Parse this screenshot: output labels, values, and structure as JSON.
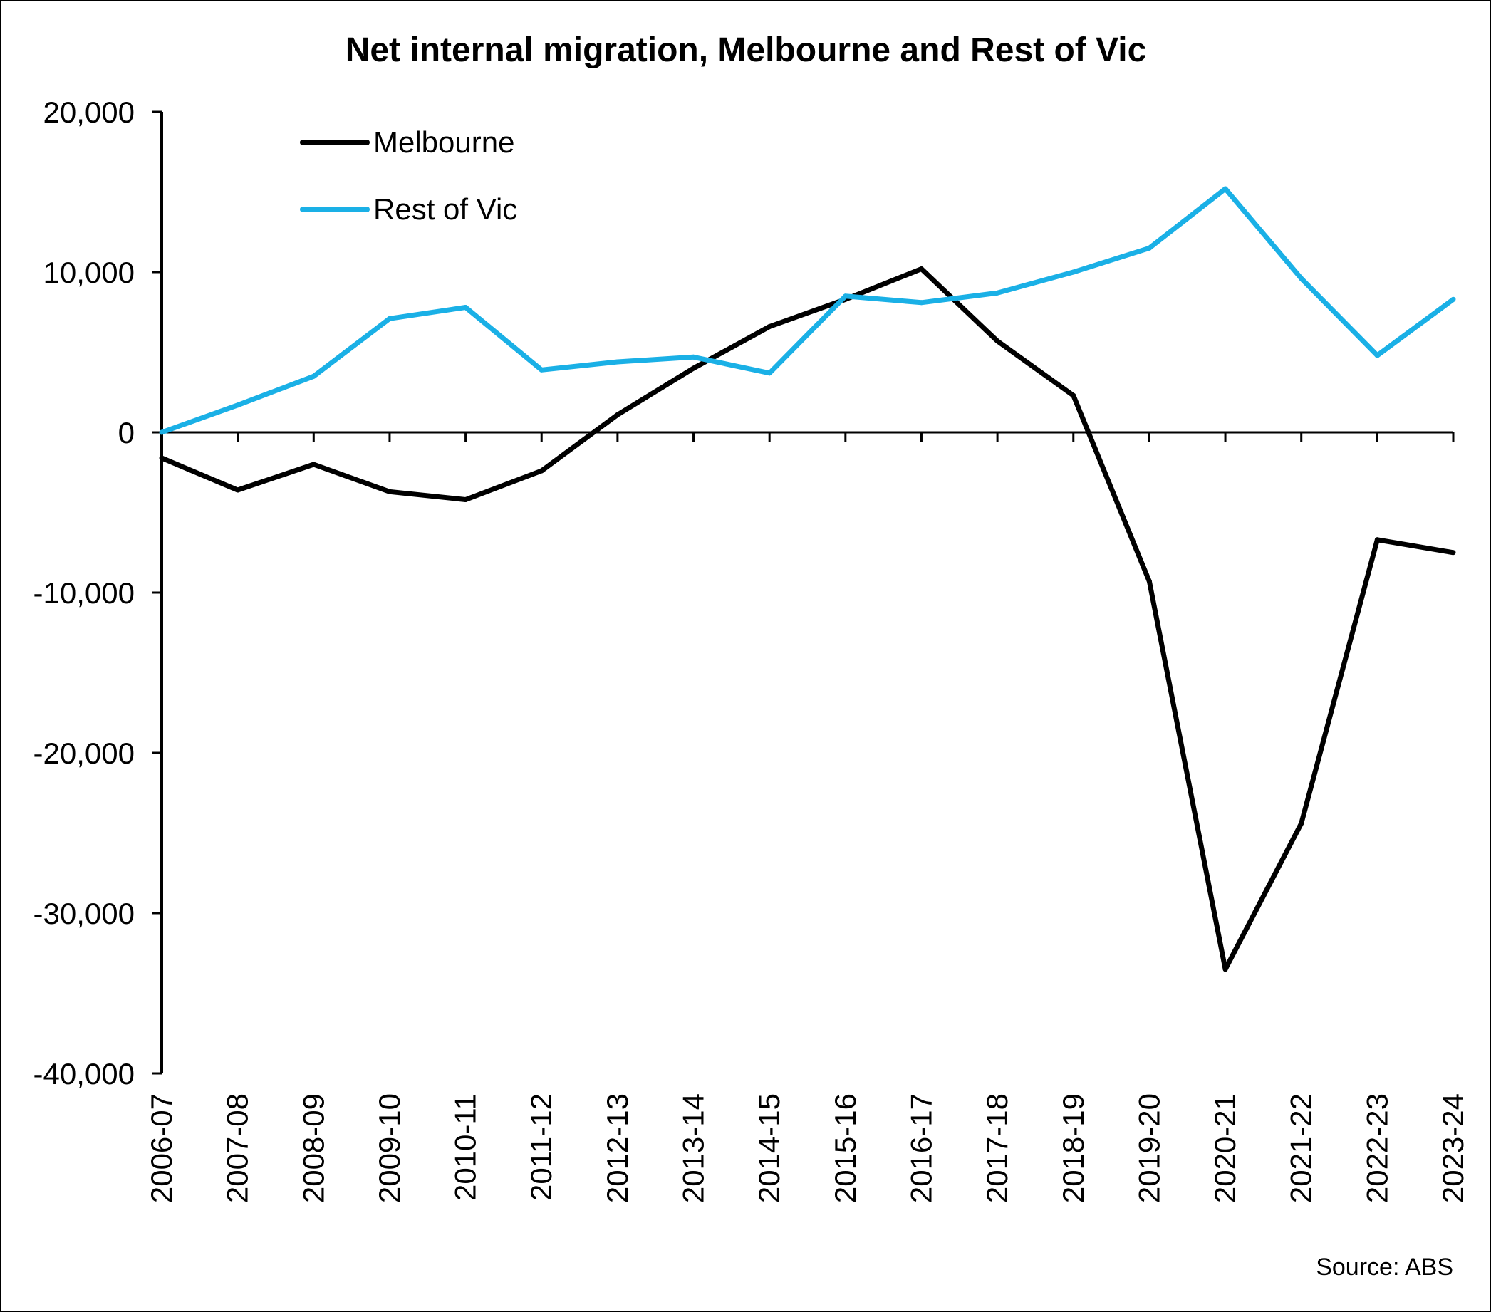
{
  "chart_data": {
    "type": "line",
    "title": "Net internal migration, Melbourne and Rest of Vic",
    "xlabel": "",
    "ylabel": "",
    "categories": [
      "2006-07",
      "2007-08",
      "2008-09",
      "2009-10",
      "2010-11",
      "2011-12",
      "2012-13",
      "2013-14",
      "2014-15",
      "2015-16",
      "2016-17",
      "2017-18",
      "2018-19",
      "2019-20",
      "2020-21",
      "2021-22",
      "2022-23",
      "2023-24"
    ],
    "ylim": [
      -40000,
      20000
    ],
    "yticks": [
      20000,
      10000,
      0,
      -10000,
      -20000,
      -30000,
      -40000
    ],
    "ytick_labels": [
      "20,000",
      "10,000",
      "0",
      "-10,000",
      "-20,000",
      "-30,000",
      "-40,000"
    ],
    "series": [
      {
        "name": "Melbourne",
        "color": "#000000",
        "values": [
          -1600,
          -3600,
          -2000,
          -3700,
          -4200,
          -2400,
          1100,
          4000,
          6600,
          8300,
          10200,
          5700,
          2300,
          -9300,
          -33500,
          -24400,
          -6700,
          -7500
        ]
      },
      {
        "name": "Rest of Vic",
        "color": "#1ab0e6",
        "values": [
          0,
          1700,
          3500,
          7100,
          7800,
          3900,
          4400,
          4700,
          3700,
          8500,
          8100,
          8700,
          10000,
          11500,
          15200,
          9600,
          4800,
          8300
        ]
      }
    ],
    "legend_position": "top-left",
    "grid": false,
    "source": "Source: ABS"
  }
}
